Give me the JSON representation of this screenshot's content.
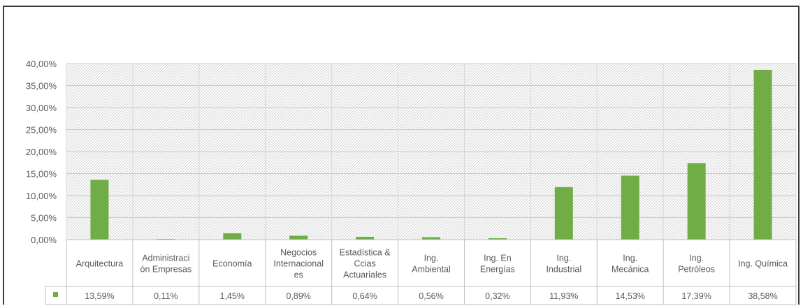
{
  "chart_data": {
    "type": "bar",
    "categories": [
      [
        "Arquitectura"
      ],
      [
        "Administraci",
        "ón Empresas"
      ],
      [
        "Economía"
      ],
      [
        "Negocios",
        "Internacional",
        "es"
      ],
      [
        "Estadística &",
        "Ccias",
        "Actuariales"
      ],
      [
        "Ing.",
        "Ambiental"
      ],
      [
        "Ing. En",
        "Energías"
      ],
      [
        "Ing.",
        "Industrial"
      ],
      [
        "Ing.",
        "Mecánica"
      ],
      [
        "Ing.",
        "Petróleos"
      ],
      [
        "Ing. Química"
      ]
    ],
    "values": [
      13.59,
      0.11,
      1.45,
      0.89,
      0.64,
      0.56,
      0.32,
      11.93,
      14.53,
      17.39,
      38.58
    ],
    "value_labels": [
      "13,59%",
      "0,11%",
      "1,45%",
      "0,89%",
      "0,64%",
      "0,56%",
      "0,32%",
      "11,93%",
      "14,53%",
      "17,39%",
      "38,58%"
    ],
    "y_ticks": [
      "0,00%",
      "5,00%",
      "10,00%",
      "15,00%",
      "20,00%",
      "25,00%",
      "30,00%",
      "35,00%",
      "40,00%"
    ],
    "ylim": [
      0,
      40
    ],
    "grid": true,
    "legend": "data-table",
    "series_color": "#70ad47",
    "title": "",
    "xlabel": "",
    "ylabel": ""
  }
}
